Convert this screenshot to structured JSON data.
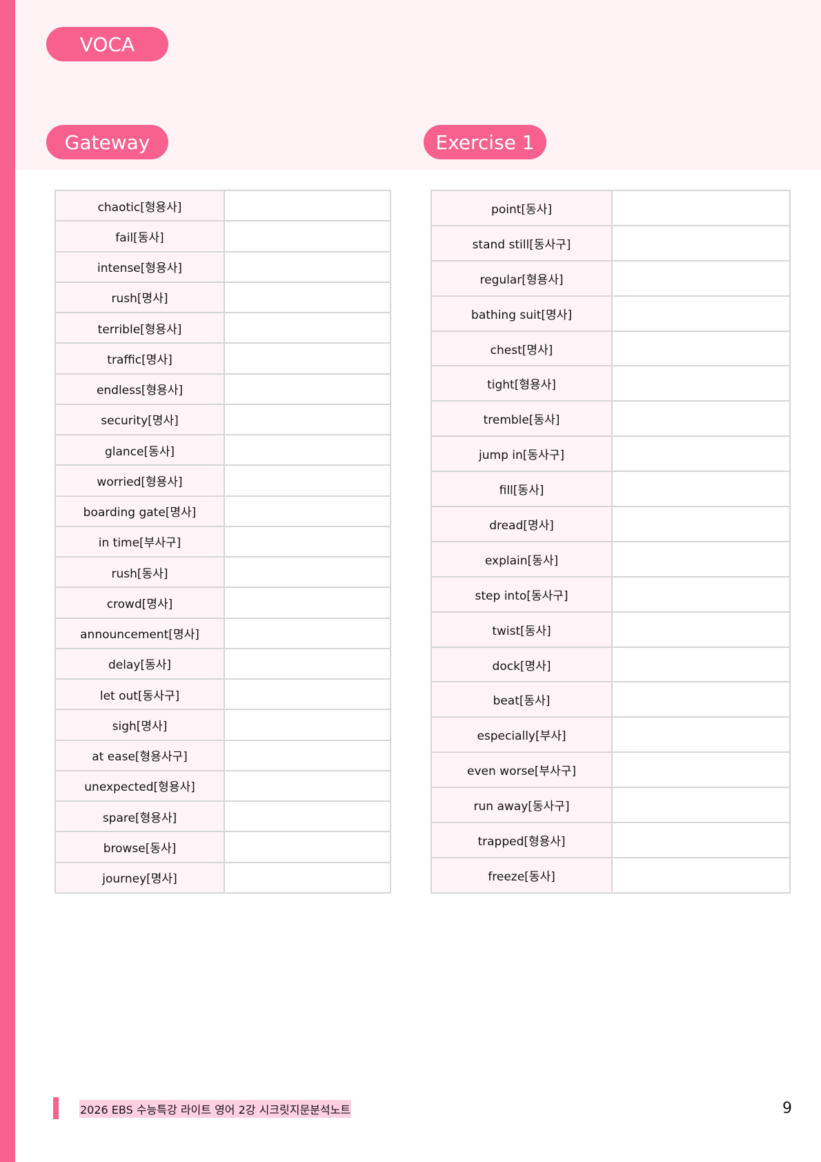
{
  "header": {
    "voca_label": "VOCA",
    "gateway_label": "Gateway",
    "exercise_label": "Exercise 1"
  },
  "gateway": [
    "chaotic[형용사]",
    "fail[동사]",
    "intense[형용사]",
    "rush[명사]",
    "terrible[형용사]",
    "traffic[명사]",
    "endless[형용사]",
    "security[명사]",
    "glance[동사]",
    "worried[형용사]",
    "boarding gate[명사]",
    "in time[부사구]",
    "rush[동사]",
    "crowd[명사]",
    "announcement[명사]",
    "delay[동사]",
    "let out[동사구]",
    "sigh[명사]",
    "at ease[형용사구]",
    "unexpected[형용사]",
    "spare[형용사]",
    "browse[동사]",
    "journey[명사]"
  ],
  "exercise1": [
    "point[동사]",
    "stand still[동사구]",
    "regular[형용사]",
    "bathing suit[명사]",
    "chest[명사]",
    "tight[형용사]",
    "tremble[동사]",
    "jump in[동사구]",
    "fill[동사]",
    "dread[명사]",
    "explain[동사]",
    "step into[동사구]",
    "twist[동사]",
    "dock[명사]",
    "beat[동사]",
    "especially[부사]",
    "even worse[부사구]",
    "run away[동사구]",
    "trapped[형용사]",
    "freeze[동사]"
  ],
  "footer": {
    "title": "2026 EBS 수능특강 라이트 영어 2강 시크릿지문분석노트",
    "page": "9"
  },
  "colors": {
    "accent": "#F8608E",
    "band": "#FFF3F6",
    "cell": "#FFF4F7"
  }
}
